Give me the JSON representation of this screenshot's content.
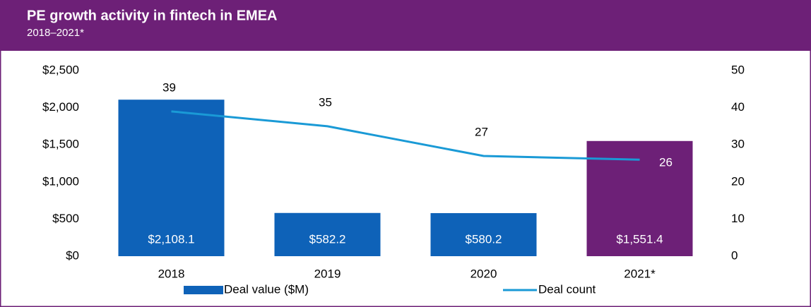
{
  "chart_data": {
    "type": "bar_line",
    "title": "PE growth activity in fintech in EMEA",
    "subtitle": "2018–2021*",
    "categories": [
      "2018",
      "2019",
      "2020",
      "2021*"
    ],
    "series": [
      {
        "name": "Deal value ($M)",
        "type": "bar",
        "color": "#0e62b8",
        "colors": [
          "#0e62b8",
          "#0e62b8",
          "#0e62b8",
          "#6d2077"
        ],
        "values": [
          2108.1,
          582.2,
          580.2,
          1551.4
        ],
        "value_labels": [
          "$2,108.1",
          "$582.2",
          "$580.2",
          "$1,551.4"
        ]
      },
      {
        "name": "Deal count",
        "type": "line",
        "axis": "y2",
        "color": "#1a9ad6",
        "values": [
          39,
          35,
          27,
          26
        ]
      }
    ],
    "ylim": [
      0,
      2500
    ],
    "yticks": [
      {
        "value": 0,
        "label": "$0"
      },
      {
        "value": 500,
        "label": "$500"
      },
      {
        "value": 1000,
        "label": "$1,000"
      },
      {
        "value": 1500,
        "label": "$1,500"
      },
      {
        "value": 2000,
        "label": "$2,000"
      },
      {
        "value": 2500,
        "label": "$2,500"
      }
    ],
    "y2lim": [
      0,
      50
    ],
    "y2ticks": [
      0,
      10,
      20,
      30,
      40,
      50
    ],
    "header_color": "#6d2077",
    "legend": "bottom"
  }
}
